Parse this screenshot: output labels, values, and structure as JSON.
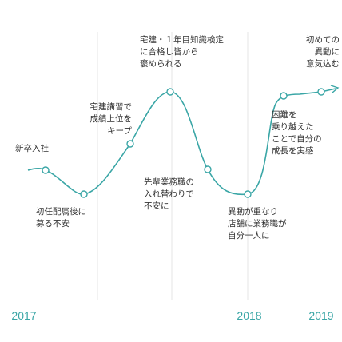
{
  "annotations": [
    {
      "lines": [
        "新卒入社"
      ]
    },
    {
      "lines": [
        "宅建講習で",
        "成績上位を",
        "キープ"
      ]
    },
    {
      "lines": [
        "宅建・１年目知識検定",
        "に合格し皆から",
        "褒められる"
      ]
    },
    {
      "lines": [
        "初めての",
        "異動に",
        "意気込む"
      ]
    },
    {
      "lines": [
        "困難を",
        "乗り越えた",
        "ことで自分の",
        "成長を実感"
      ]
    },
    {
      "lines": [
        "先輩業務職の",
        "入れ替わりで",
        "不安に"
      ]
    },
    {
      "lines": [
        "初任配属後に",
        "募る不安"
      ]
    },
    {
      "lines": [
        "異動が重なり",
        "店舗に業務職が",
        "自分一人に"
      ]
    }
  ],
  "years": [
    "2017",
    "2018",
    "2019"
  ]
}
